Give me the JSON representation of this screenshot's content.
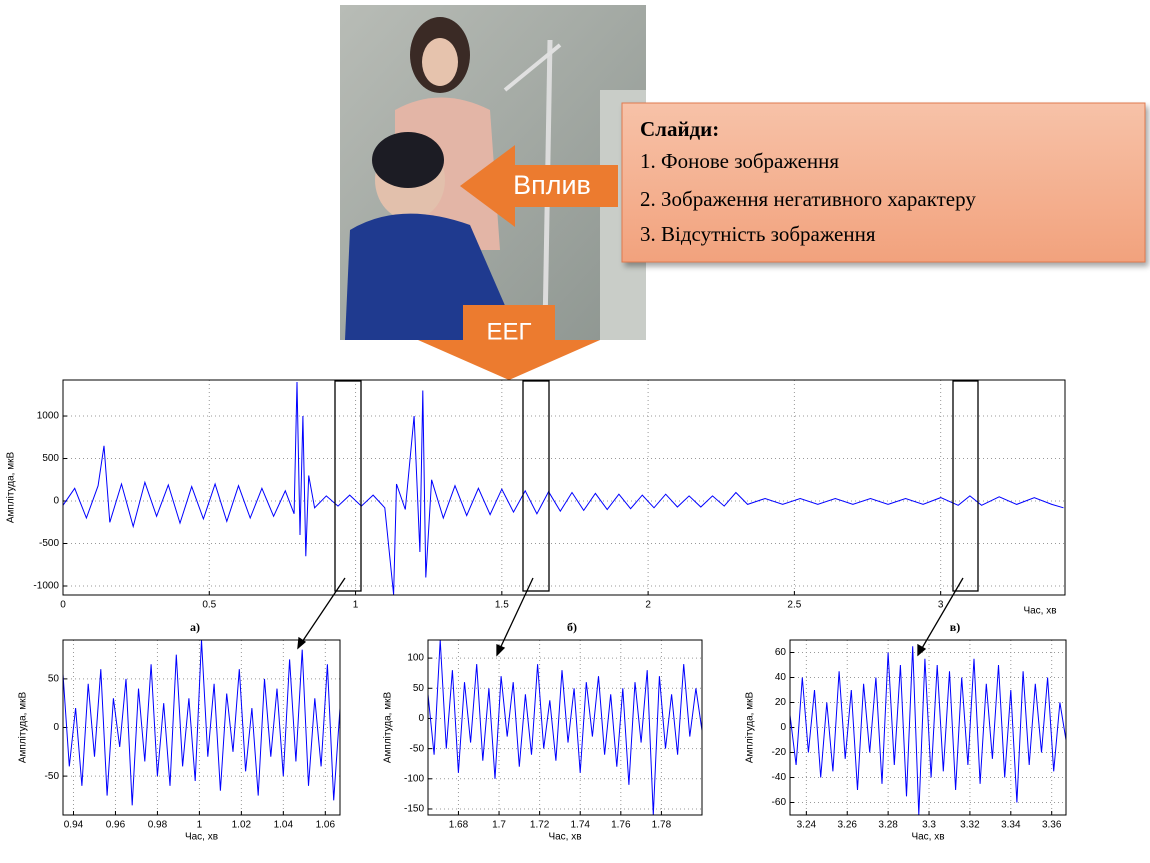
{
  "callout": {
    "title": "Слайди:",
    "items": [
      "1. Фонове зображення",
      "2. Зображення негативного характеру",
      "3. Відсутність зображення"
    ]
  },
  "arrows": {
    "influence": "Вплив",
    "eeg": "ЕЕГ"
  },
  "chart_data": [
    {
      "type": "line",
      "xlabel": "Час, хв",
      "ylabel": "Амплітуда, мкВ",
      "xlim": [
        0,
        3.425
      ],
      "ylim": [
        -1106,
        1424
      ],
      "xticks": [
        0,
        0.5,
        1,
        1.5,
        2,
        2.5,
        3
      ],
      "yticks": [
        -1000,
        -500,
        0,
        500,
        1000
      ],
      "grid": true,
      "x": [
        0,
        0.04,
        0.08,
        0.12,
        0.14,
        0.16,
        0.2,
        0.24,
        0.28,
        0.32,
        0.36,
        0.4,
        0.44,
        0.48,
        0.52,
        0.56,
        0.6,
        0.64,
        0.68,
        0.72,
        0.76,
        0.79,
        0.8,
        0.81,
        0.82,
        0.83,
        0.84,
        0.86,
        0.9,
        0.94,
        0.98,
        1.02,
        1.06,
        1.1,
        1.13,
        1.14,
        1.17,
        1.2,
        1.22,
        1.23,
        1.24,
        1.26,
        1.3,
        1.34,
        1.38,
        1.42,
        1.46,
        1.5,
        1.54,
        1.58,
        1.62,
        1.66,
        1.7,
        1.74,
        1.78,
        1.82,
        1.86,
        1.9,
        1.94,
        1.98,
        2.02,
        2.06,
        2.1,
        2.14,
        2.18,
        2.22,
        2.26,
        2.3,
        2.34,
        2.4,
        2.46,
        2.52,
        2.58,
        2.64,
        2.7,
        2.76,
        2.82,
        2.88,
        2.94,
        3.0,
        3.06,
        3.1,
        3.14,
        3.2,
        3.26,
        3.32,
        3.38,
        3.42
      ],
      "series": [
        {
          "color": "#0000ff",
          "values": [
            -50,
            150,
            -200,
            180,
            650,
            -250,
            200,
            -300,
            220,
            -180,
            190,
            -260,
            170,
            -210,
            200,
            -240,
            180,
            -200,
            150,
            -180,
            120,
            -150,
            1400,
            -400,
            1000,
            -650,
            300,
            -80,
            60,
            -60,
            70,
            -60,
            70,
            -80,
            -1100,
            200,
            -100,
            1000,
            -600,
            1300,
            -900,
            250,
            -200,
            180,
            -170,
            150,
            -160,
            140,
            -130,
            120,
            -150,
            110,
            -120,
            100,
            -110,
            90,
            -100,
            80,
            -90,
            70,
            -80,
            80,
            -70,
            60,
            -70,
            60,
            -60,
            100,
            -40,
            30,
            -40,
            30,
            -40,
            30,
            -40,
            30,
            -40,
            30,
            -40,
            40,
            -50,
            60,
            -50,
            50,
            -40,
            40,
            -40,
            -80
          ]
        }
      ]
    },
    {
      "type": "line",
      "caption": "а)",
      "xlabel": "Час, хв",
      "ylabel": "Амплітуда, мкВ",
      "xlim": [
        0.935,
        1.067
      ],
      "ylim": [
        -90,
        90
      ],
      "xticks": [
        0.94,
        0.96,
        0.98,
        1,
        1.02,
        1.04,
        1.06
      ],
      "yticks": [
        -50,
        0,
        50
      ],
      "grid": true,
      "x": [
        0.935,
        0.938,
        0.941,
        0.944,
        0.947,
        0.95,
        0.953,
        0.956,
        0.959,
        0.962,
        0.965,
        0.968,
        0.971,
        0.974,
        0.977,
        0.98,
        0.983,
        0.986,
        0.989,
        0.992,
        0.995,
        0.998,
        1.001,
        1.004,
        1.007,
        1.01,
        1.013,
        1.016,
        1.019,
        1.022,
        1.025,
        1.028,
        1.031,
        1.034,
        1.037,
        1.04,
        1.043,
        1.046,
        1.049,
        1.052,
        1.055,
        1.058,
        1.061,
        1.064,
        1.067
      ],
      "series": [
        {
          "color": "#0000ff",
          "values": [
            55,
            -40,
            20,
            -60,
            45,
            -30,
            60,
            -70,
            30,
            -20,
            50,
            -80,
            40,
            -35,
            65,
            -50,
            25,
            -60,
            75,
            -40,
            30,
            -55,
            90,
            -30,
            45,
            -65,
            35,
            -25,
            60,
            -45,
            20,
            -70,
            50,
            -30,
            40,
            -50,
            70,
            -35,
            80,
            -60,
            30,
            -40,
            65,
            -75,
            20
          ]
        }
      ]
    },
    {
      "type": "line",
      "caption": "б)",
      "xlabel": "Час, хв",
      "ylabel": "Амплітуда, мкВ",
      "xlim": [
        1.665,
        1.8
      ],
      "ylim": [
        -160,
        130
      ],
      "xticks": [
        1.68,
        1.7,
        1.72,
        1.74,
        1.76,
        1.78
      ],
      "yticks": [
        -150,
        -100,
        -50,
        0,
        50,
        100
      ],
      "grid": true,
      "x": [
        1.665,
        1.668,
        1.671,
        1.674,
        1.677,
        1.68,
        1.683,
        1.686,
        1.689,
        1.692,
        1.695,
        1.698,
        1.701,
        1.704,
        1.707,
        1.71,
        1.713,
        1.716,
        1.719,
        1.722,
        1.725,
        1.728,
        1.731,
        1.734,
        1.737,
        1.74,
        1.743,
        1.746,
        1.749,
        1.752,
        1.755,
        1.758,
        1.761,
        1.764,
        1.767,
        1.77,
        1.773,
        1.776,
        1.779,
        1.782,
        1.785,
        1.788,
        1.791,
        1.794,
        1.797,
        1.8
      ],
      "series": [
        {
          "color": "#0000ff",
          "values": [
            40,
            -60,
            130,
            -50,
            80,
            -90,
            60,
            -40,
            90,
            -70,
            50,
            -100,
            70,
            -30,
            60,
            -80,
            40,
            -60,
            90,
            -50,
            30,
            -70,
            80,
            -40,
            50,
            -90,
            60,
            -30,
            70,
            -60,
            40,
            -80,
            50,
            -110,
            60,
            -40,
            80,
            -160,
            70,
            -50,
            40,
            -60,
            90,
            -30,
            50,
            -20
          ]
        }
      ]
    },
    {
      "type": "line",
      "caption": "в)",
      "xlabel": "Час, хв",
      "ylabel": "Амплітуда, мкВ",
      "xlim": [
        3.232,
        3.367
      ],
      "ylim": [
        -70,
        70
      ],
      "xticks": [
        3.24,
        3.26,
        3.28,
        3.3,
        3.32,
        3.34,
        3.36
      ],
      "yticks": [
        -60,
        -40,
        -20,
        0,
        20,
        40,
        60
      ],
      "grid": true,
      "x": [
        3.232,
        3.235,
        3.238,
        3.241,
        3.244,
        3.247,
        3.25,
        3.253,
        3.256,
        3.259,
        3.262,
        3.265,
        3.268,
        3.271,
        3.274,
        3.277,
        3.28,
        3.283,
        3.286,
        3.289,
        3.292,
        3.295,
        3.298,
        3.301,
        3.304,
        3.307,
        3.31,
        3.313,
        3.316,
        3.319,
        3.322,
        3.325,
        3.328,
        3.331,
        3.334,
        3.337,
        3.34,
        3.343,
        3.346,
        3.349,
        3.352,
        3.355,
        3.358,
        3.361,
        3.364,
        3.367
      ],
      "series": [
        {
          "color": "#0000ff",
          "values": [
            10,
            -30,
            40,
            -20,
            30,
            -40,
            20,
            -35,
            45,
            -25,
            30,
            -50,
            35,
            -20,
            40,
            -45,
            60,
            -30,
            50,
            -55,
            65,
            -70,
            55,
            -40,
            50,
            -35,
            45,
            -50,
            40,
            -30,
            55,
            -45,
            35,
            -25,
            50,
            -40,
            30,
            -60,
            45,
            -30,
            35,
            -20,
            40,
            -35,
            20,
            -10
          ]
        }
      ]
    }
  ]
}
